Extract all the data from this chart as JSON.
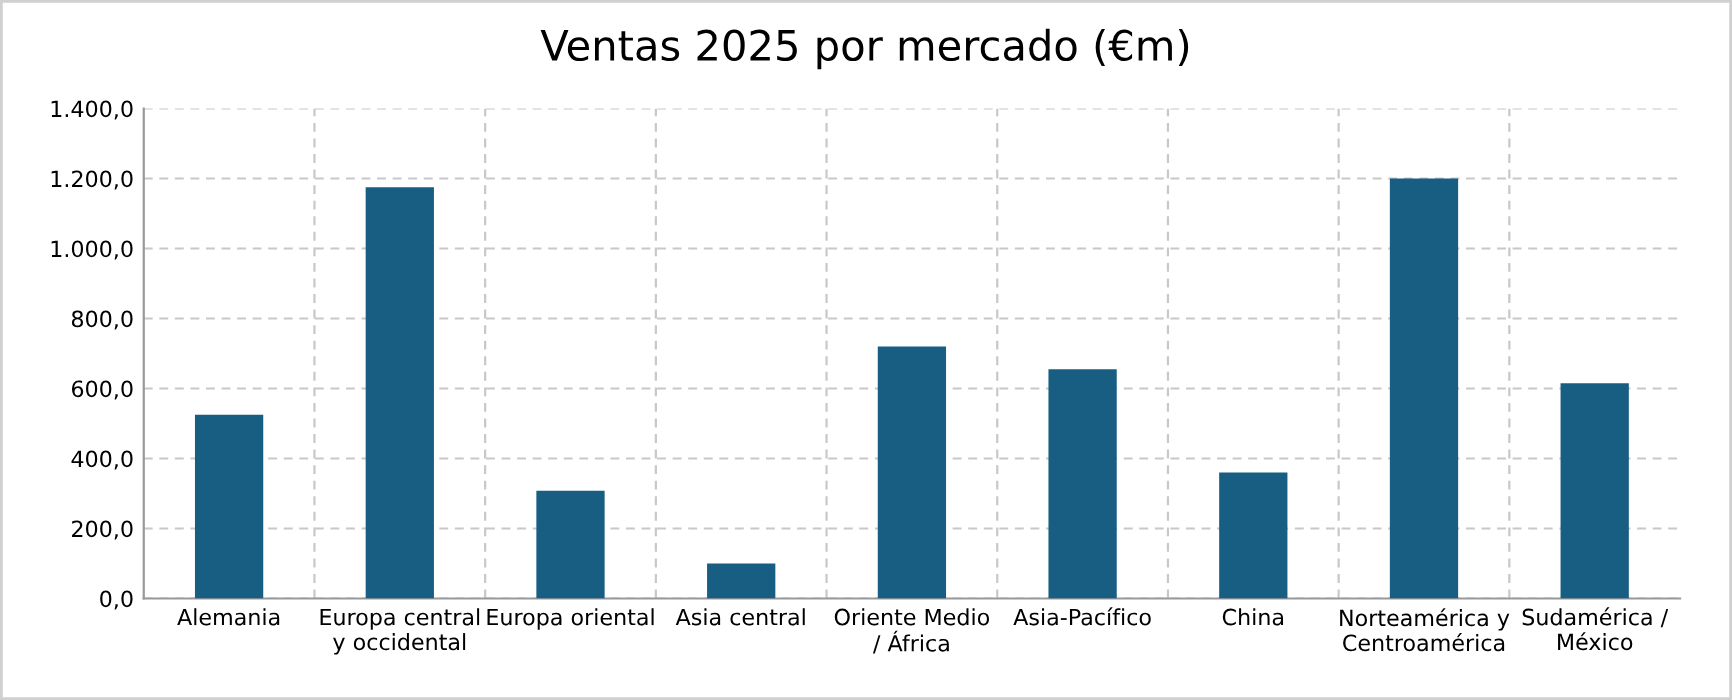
{
  "chart_data": {
    "type": "bar",
    "title": "Ventas 2025 por mercado (€m)",
    "categories": [
      "Alemania",
      "Europa central\ny occidental",
      "Europa oriental",
      "Asia central",
      "Oriente Medio\n/ África",
      "Asia-Pacífico",
      "China",
      "Norteamérica y\nCentroamérica",
      "Sudamérica /\nMéxico"
    ],
    "values": [
      525,
      1175,
      308,
      100,
      720,
      655,
      360,
      1200,
      615
    ],
    "color": "#175e82",
    "ylim": [
      0,
      1400
    ],
    "yticks": [
      {
        "value": 0,
        "label": "0,0"
      },
      {
        "value": 200,
        "label": "200,0"
      },
      {
        "value": 400,
        "label": "400,0"
      },
      {
        "value": 600,
        "label": "600,0"
      },
      {
        "value": 800,
        "label": "800,0"
      },
      {
        "value": 1000,
        "label": "1.000,0"
      },
      {
        "value": 1200,
        "label": "1.200,0"
      },
      {
        "value": 1400,
        "label": "1.400,0"
      }
    ],
    "grid": true
  }
}
